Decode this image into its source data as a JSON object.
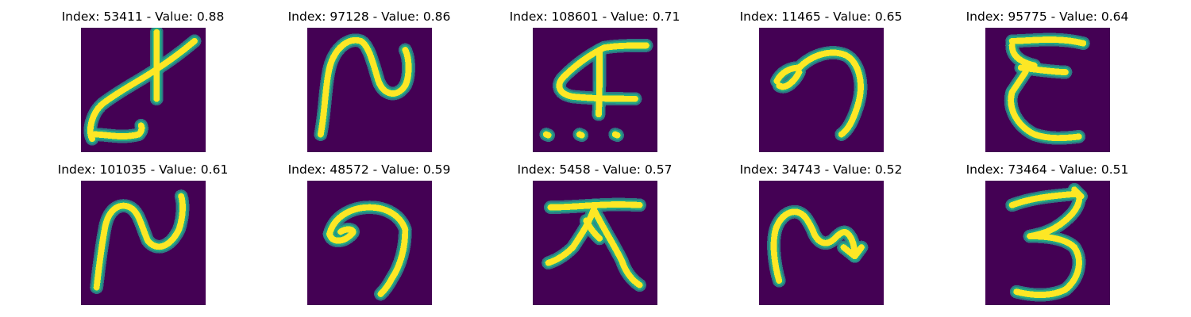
{
  "panels": [
    {
      "title": "Index: 53411 - Value: 0.88",
      "glyph": "handwritten character resembling ‘ㄹ’ with crossing stroke"
    },
    {
      "title": "Index: 97128 - Value: 0.86",
      "glyph": "handwritten character resembling ‘N’"
    },
    {
      "title": "Index: 108601 - Value: 0.71",
      "glyph": "handwritten character resembling ‘A’ with crossbar"
    },
    {
      "title": "Index: 11465 - Value: 0.65",
      "glyph": "handwritten character resembling ‘9’"
    },
    {
      "title": "Index: 95775 - Value: 0.64",
      "glyph": "handwritten character resembling ‘E’"
    },
    {
      "title": "Index: 101035 - Value: 0.61",
      "glyph": "handwritten character resembling ‘N’"
    },
    {
      "title": "Index: 48572 - Value: 0.59",
      "glyph": "handwritten character resembling ‘9’"
    },
    {
      "title": "Index: 5458 - Value: 0.57",
      "glyph": "handwritten character resembling ‘T’ with splayed legs"
    },
    {
      "title": "Index: 34743 - Value: 0.52",
      "glyph": "handwritten character resembling ‘N’"
    },
    {
      "title": "Index: 73464 - Value: 0.51",
      "glyph": "handwritten character resembling ‘3’"
    }
  ],
  "colors": {
    "background": "#440154",
    "stroke_edge": "#2a8c8c",
    "stroke_mid": "#22a884",
    "stroke_core": "#fde725"
  }
}
